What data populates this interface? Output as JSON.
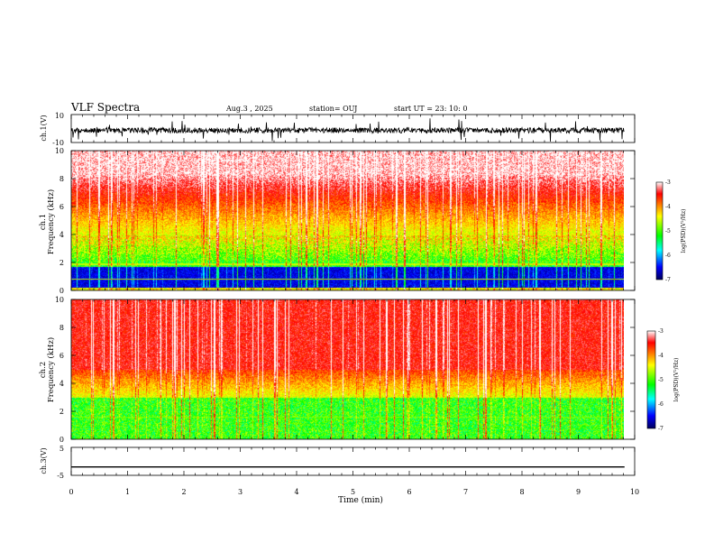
{
  "header": {
    "title": "VLF Spectra",
    "date": "Aug.3 , 2025",
    "station": "station= OUJ",
    "start": "start UT = 23: 10: 0"
  },
  "chart_data": [
    {
      "id": "ch1-waveform",
      "type": "line",
      "ylabel": "ch.1(V)",
      "ylim": [
        -10,
        10
      ],
      "yticks": [
        "10",
        "-10"
      ],
      "xlim": [
        0,
        10
      ]
    },
    {
      "id": "ch1-spectrogram",
      "type": "heatmap",
      "ylabel": "ch.1 Frequency (kHz)",
      "ylim": [
        0,
        10
      ],
      "yticks": [
        "0",
        "2",
        "4",
        "6",
        "8",
        "10"
      ],
      "xlim": [
        0,
        10
      ],
      "colorbar": {
        "label": "log(PSD)(V²/Hz)",
        "range": [
          -7,
          -3
        ],
        "ticks": [
          "-3",
          "-4",
          "-5",
          "-6",
          "-7"
        ]
      }
    },
    {
      "id": "ch2-spectrogram",
      "type": "heatmap",
      "ylabel": "ch.2 Frequency (kHz)",
      "ylim": [
        0,
        10
      ],
      "yticks": [
        "0",
        "2",
        "4",
        "6",
        "8",
        "10"
      ],
      "xlim": [
        0,
        10
      ],
      "colorbar": {
        "label": "log(PSD)(V²/Hz)",
        "range": [
          -7,
          -3
        ],
        "ticks": [
          "-3",
          "-4",
          "-5",
          "-6",
          "-7"
        ]
      }
    },
    {
      "id": "ch3-waveform",
      "type": "line",
      "ylabel": "ch.3(V)",
      "ylim": [
        -5,
        5
      ],
      "yticks": [
        "5",
        "-5"
      ],
      "series": [
        {
          "name": "ch.3",
          "constant": -2.0
        }
      ],
      "xlim": [
        0,
        10
      ]
    }
  ],
  "xaxis": {
    "label": "Time (min)",
    "ticks": [
      "0",
      "1",
      "2",
      "3",
      "4",
      "5",
      "6",
      "7",
      "8",
      "9",
      "10"
    ],
    "data_end": 9.82
  },
  "colors": {
    "jet_stops": [
      "#ffffff",
      "#ff0000",
      "#ffff00",
      "#00ff00",
      "#00ffff",
      "#0000ff",
      "#00005a"
    ]
  }
}
